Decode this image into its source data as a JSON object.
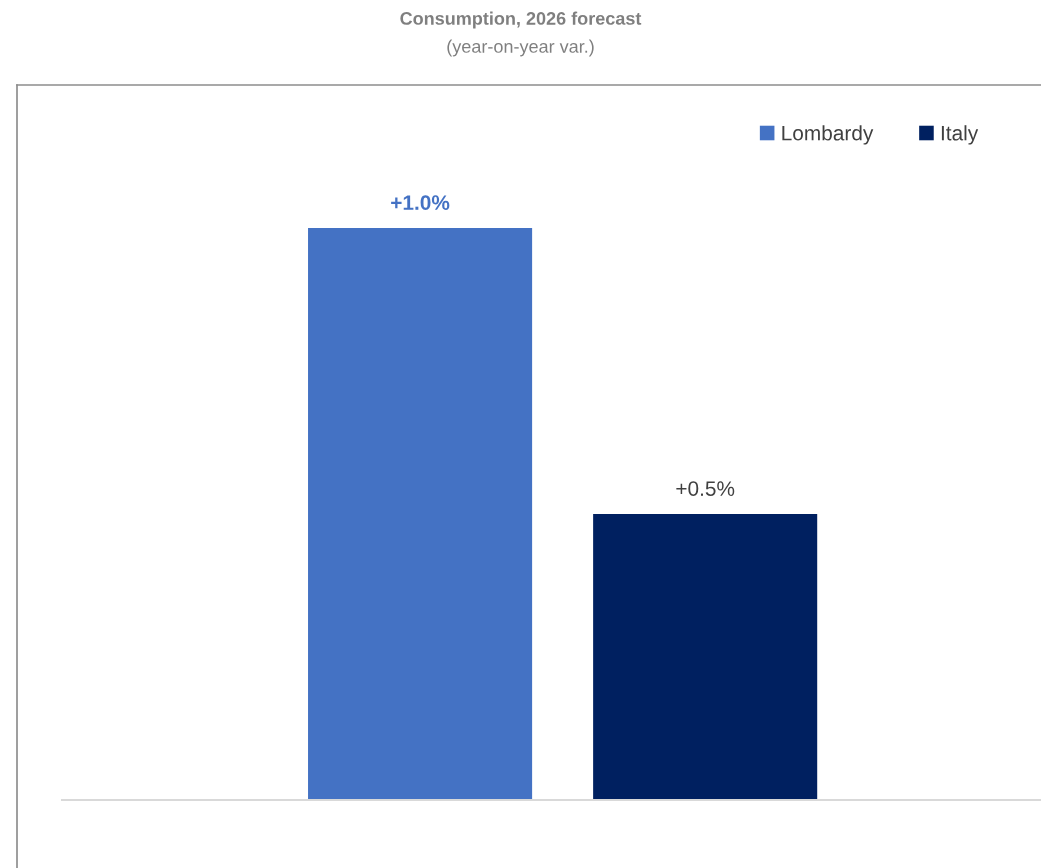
{
  "chart_data": {
    "type": "bar",
    "title": "Consumption, 2026 forecast",
    "subtitle": "(year-on-year var.)",
    "categories": [
      null
    ],
    "series": [
      {
        "name": "Lombardy",
        "color": "#4472c4",
        "values": [
          1.0
        ],
        "value_labels": [
          "+1.0%"
        ]
      },
      {
        "name": "Italy",
        "color": "#002060",
        "values": [
          0.5
        ],
        "value_labels": [
          "+0.5%"
        ]
      }
    ],
    "legend": "top right",
    "grid": false
  }
}
